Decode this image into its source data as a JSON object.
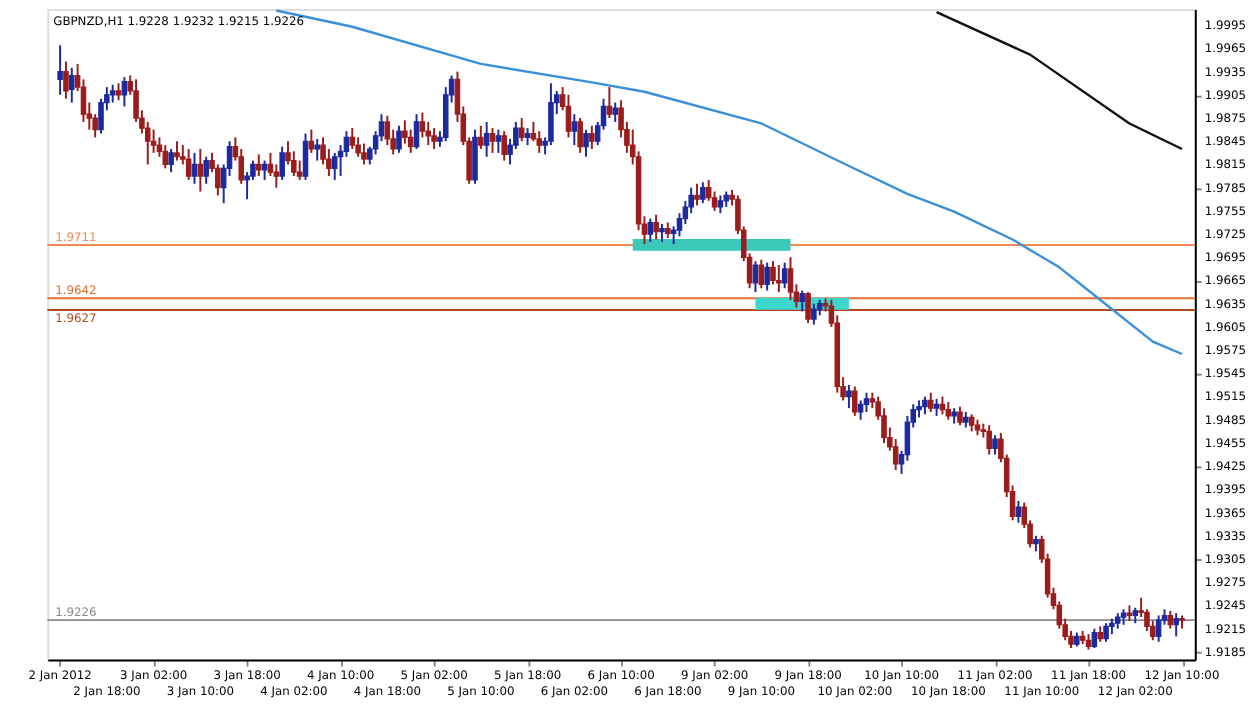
{
  "chart_data": {
    "type": "candlestick",
    "title": "GBPNZD,H1 1.9228 1.9232 1.9215 1.9226",
    "categories": [
      "2 Jan 2012",
      null,
      null,
      null,
      null,
      null,
      null,
      null,
      "2 Jan 18:00",
      null,
      null,
      null,
      null,
      null,
      null,
      null,
      "3 Jan 02:00",
      null,
      null,
      null,
      null,
      null,
      null,
      null,
      "3 Jan 10:00",
      null,
      null,
      null,
      null,
      null,
      null,
      null,
      "3 Jan 18:00",
      null,
      null,
      null,
      null,
      null,
      null,
      null,
      "4 Jan 02:00",
      null,
      null,
      null,
      null,
      null,
      null,
      null,
      "4 Jan 10:00",
      null,
      null,
      null,
      null,
      null,
      null,
      null,
      "4 Jan 18:00",
      null,
      null,
      null,
      null,
      null,
      null,
      null,
      "5 Jan 02:00",
      null,
      null,
      null,
      null,
      null,
      null,
      null,
      "5 Jan 10:00",
      null,
      null,
      null,
      null,
      null,
      null,
      null,
      "5 Jan 18:00",
      null,
      null,
      null,
      null,
      null,
      null,
      null,
      "6 Jan 02:00",
      null,
      null,
      null,
      null,
      null,
      null,
      null,
      "6 Jan 10:00",
      null,
      null,
      null,
      null,
      null,
      null,
      null,
      "6 Jan 18:00",
      null,
      null,
      null,
      null,
      null,
      null,
      null,
      "9 Jan 02:00",
      null,
      null,
      null,
      null,
      null,
      null,
      null,
      "9 Jan 10:00",
      null,
      null,
      null,
      null,
      null,
      null,
      null,
      "9 Jan 18:00",
      null,
      null,
      null,
      null,
      null,
      null,
      null,
      "10 Jan 02:00",
      null,
      null,
      null,
      null,
      null,
      null,
      null,
      "10 Jan 10:00",
      null,
      null,
      null,
      null,
      null,
      null,
      null,
      "10 Jan 18:00",
      null,
      null,
      null,
      null,
      null,
      null,
      null,
      "11 Jan 02:00",
      null,
      null,
      null,
      null,
      null,
      null,
      null,
      "11 Jan 10:00",
      null,
      null,
      null,
      null,
      null,
      null,
      null,
      "11 Jan 18:00",
      null,
      null,
      null,
      null,
      null,
      null,
      null,
      "12 Jan 02:00",
      null,
      null,
      null,
      null,
      null,
      null,
      null,
      "12 Jan 10:00"
    ],
    "ohlc": [
      [
        1.9925,
        1.9969,
        1.9905,
        1.9935
      ],
      [
        1.9935,
        1.9948,
        1.99,
        1.991
      ],
      [
        1.9912,
        1.994,
        1.9895,
        1.993
      ],
      [
        1.993,
        1.9945,
        1.991,
        1.9915
      ],
      [
        1.9915,
        1.9925,
        1.987,
        1.988
      ],
      [
        1.988,
        1.9895,
        1.986,
        1.9875
      ],
      [
        1.9875,
        1.988,
        1.985,
        1.986
      ],
      [
        1.986,
        1.99,
        1.9855,
        1.9895
      ],
      [
        1.9895,
        1.9915,
        1.9885,
        1.9905
      ],
      [
        1.9905,
        1.9918,
        1.9895,
        1.991
      ],
      [
        1.991,
        1.992,
        1.9898,
        1.9905
      ],
      [
        1.9905,
        1.9928,
        1.989,
        1.9922
      ],
      [
        1.9922,
        1.993,
        1.9905,
        1.991
      ],
      [
        1.991,
        1.9925,
        1.987,
        1.9875
      ],
      [
        1.9875,
        1.9885,
        1.9855,
        1.9862
      ],
      [
        1.9862,
        1.987,
        1.9815,
        1.9845
      ],
      [
        1.9845,
        1.986,
        1.983,
        1.984
      ],
      [
        1.984,
        1.985,
        1.9825,
        1.9832
      ],
      [
        1.9832,
        1.984,
        1.981,
        1.9815
      ],
      [
        1.9815,
        1.9835,
        1.9805,
        1.983
      ],
      [
        1.983,
        1.9845,
        1.982,
        1.9825
      ],
      [
        1.9825,
        1.984,
        1.9815,
        1.9822
      ],
      [
        1.9822,
        1.9835,
        1.9795,
        1.98
      ],
      [
        1.98,
        1.983,
        1.979,
        1.9815
      ],
      [
        1.9815,
        1.9835,
        1.978,
        1.98
      ],
      [
        1.98,
        1.9825,
        1.979,
        1.982
      ],
      [
        1.982,
        1.983,
        1.9805,
        1.981
      ],
      [
        1.981,
        1.9815,
        1.9775,
        1.9785
      ],
      [
        1.9785,
        1.9815,
        1.9765,
        1.981
      ],
      [
        1.981,
        1.9845,
        1.98,
        1.9838
      ],
      [
        1.9838,
        1.985,
        1.982,
        1.9825
      ],
      [
        1.9825,
        1.9835,
        1.979,
        1.9795
      ],
      [
        1.9795,
        1.9805,
        1.977,
        1.98
      ],
      [
        1.98,
        1.982,
        1.9795,
        1.9815
      ],
      [
        1.9815,
        1.9828,
        1.98,
        1.9808
      ],
      [
        1.9808,
        1.982,
        1.9795,
        1.9815
      ],
      [
        1.9815,
        1.983,
        1.98,
        1.9805
      ],
      [
        1.9805,
        1.9815,
        1.9785,
        1.98
      ],
      [
        1.98,
        1.9838,
        1.9795,
        1.983
      ],
      [
        1.983,
        1.9845,
        1.9815,
        1.982
      ],
      [
        1.982,
        1.9832,
        1.98,
        1.9805
      ],
      [
        1.9805,
        1.982,
        1.9795,
        1.98
      ],
      [
        1.98,
        1.9855,
        1.9795,
        1.9845
      ],
      [
        1.9845,
        1.986,
        1.983,
        1.9835
      ],
      [
        1.9835,
        1.9848,
        1.982,
        1.984
      ],
      [
        1.984,
        1.985,
        1.9815,
        1.9822
      ],
      [
        1.9822,
        1.9835,
        1.98,
        1.981
      ],
      [
        1.981,
        1.983,
        1.9795,
        1.9825
      ],
      [
        1.9825,
        1.984,
        1.98,
        1.9832
      ],
      [
        1.9832,
        1.9858,
        1.9825,
        1.985
      ],
      [
        1.985,
        1.9862,
        1.9835,
        1.984
      ],
      [
        1.984,
        1.985,
        1.9825,
        1.983
      ],
      [
        1.983,
        1.9842,
        1.9815,
        1.9822
      ],
      [
        1.9822,
        1.9838,
        1.9815,
        1.9835
      ],
      [
        1.9835,
        1.9858,
        1.9828,
        1.9852
      ],
      [
        1.9852,
        1.988,
        1.9845,
        1.987
      ],
      [
        1.987,
        1.9878,
        1.984,
        1.9848
      ],
      [
        1.9848,
        1.986,
        1.9828,
        1.9835
      ],
      [
        1.9835,
        1.9865,
        1.983,
        1.9858
      ],
      [
        1.9858,
        1.9872,
        1.9842,
        1.985
      ],
      [
        1.985,
        1.986,
        1.983,
        1.9838
      ],
      [
        1.9838,
        1.988,
        1.9835,
        1.987
      ],
      [
        1.987,
        1.9882,
        1.985,
        1.9858
      ],
      [
        1.9858,
        1.987,
        1.984,
        1.9852
      ],
      [
        1.9852,
        1.9862,
        1.9835,
        1.9845
      ],
      [
        1.9845,
        1.9858,
        1.9838,
        1.985
      ],
      [
        1.985,
        1.9915,
        1.9845,
        1.9905
      ],
      [
        1.9905,
        1.993,
        1.9895,
        1.9925
      ],
      [
        1.9925,
        1.9935,
        1.987,
        1.988
      ],
      [
        1.988,
        1.989,
        1.984,
        1.9845
      ],
      [
        1.9845,
        1.985,
        1.979,
        1.9795
      ],
      [
        1.9795,
        1.986,
        1.979,
        1.985
      ],
      [
        1.985,
        1.9865,
        1.9835,
        1.984
      ],
      [
        1.984,
        1.987,
        1.9825,
        1.9855
      ],
      [
        1.9855,
        1.9862,
        1.983,
        1.9845
      ],
      [
        1.9845,
        1.986,
        1.983,
        1.9852
      ],
      [
        1.9852,
        1.9858,
        1.982,
        1.9828
      ],
      [
        1.9828,
        1.9848,
        1.9815,
        1.984
      ],
      [
        1.984,
        1.987,
        1.9835,
        1.9862
      ],
      [
        1.9862,
        1.9875,
        1.9845,
        1.985
      ],
      [
        1.985,
        1.9862,
        1.984,
        1.9855
      ],
      [
        1.9855,
        1.987,
        1.9845,
        1.9848
      ],
      [
        1.9848,
        1.9858,
        1.983,
        1.984
      ],
      [
        1.984,
        1.985,
        1.9828,
        1.9845
      ],
      [
        1.9845,
        1.992,
        1.984,
        1.9895
      ],
      [
        1.9895,
        1.991,
        1.988,
        1.9905
      ],
      [
        1.9905,
        1.9915,
        1.9885,
        1.989
      ],
      [
        1.989,
        1.9905,
        1.985,
        1.9858
      ],
      [
        1.9858,
        1.988,
        1.984,
        1.987
      ],
      [
        1.987,
        1.9875,
        1.983,
        1.9838
      ],
      [
        1.9838,
        1.986,
        1.9825,
        1.9855
      ],
      [
        1.9855,
        1.9865,
        1.9835,
        1.9845
      ],
      [
        1.9845,
        1.987,
        1.984,
        1.9865
      ],
      [
        1.9865,
        1.99,
        1.986,
        1.989
      ],
      [
        1.989,
        1.9915,
        1.9875,
        1.988
      ],
      [
        1.988,
        1.9895,
        1.987,
        1.9888
      ],
      [
        1.9888,
        1.9898,
        1.985,
        1.986
      ],
      [
        1.986,
        1.987,
        1.983,
        1.984
      ],
      [
        1.984,
        1.986,
        1.9815,
        1.9825
      ],
      [
        1.9825,
        1.9832,
        1.973,
        1.9738
      ],
      [
        1.9738,
        1.9748,
        1.9712,
        1.9725
      ],
      [
        1.9725,
        1.9745,
        1.9715,
        1.974
      ],
      [
        1.974,
        1.975,
        1.9718,
        1.9728
      ],
      [
        1.9728,
        1.9738,
        1.9715,
        1.9732
      ],
      [
        1.9732,
        1.974,
        1.972,
        1.9726
      ],
      [
        1.9726,
        1.9735,
        1.9712,
        1.973
      ],
      [
        1.973,
        1.9752,
        1.9722,
        1.9745
      ],
      [
        1.9745,
        1.9768,
        1.9738,
        1.976
      ],
      [
        1.976,
        1.9785,
        1.9752,
        1.9775
      ],
      [
        1.9775,
        1.979,
        1.9762,
        1.977
      ],
      [
        1.977,
        1.9792,
        1.9765,
        1.9785
      ],
      [
        1.9785,
        1.9795,
        1.9768,
        1.9772
      ],
      [
        1.9772,
        1.978,
        1.9755,
        1.976
      ],
      [
        1.976,
        1.9775,
        1.9752,
        1.9768
      ],
      [
        1.9768,
        1.978,
        1.976,
        1.9775
      ],
      [
        1.9775,
        1.9782,
        1.9762,
        1.977
      ],
      [
        1.977,
        1.9775,
        1.9725,
        1.973
      ],
      [
        1.973,
        1.9735,
        1.969,
        1.9695
      ],
      [
        1.9695,
        1.97,
        1.9655,
        1.9662
      ],
      [
        1.9662,
        1.969,
        1.965,
        1.9685
      ],
      [
        1.9685,
        1.9692,
        1.9655,
        1.966
      ],
      [
        1.966,
        1.9688,
        1.9652,
        1.9682
      ],
      [
        1.9682,
        1.969,
        1.966,
        1.9665
      ],
      [
        1.9665,
        1.9685,
        1.965,
        1.9662
      ],
      [
        1.9662,
        1.9688,
        1.9655,
        1.968
      ],
      [
        1.968,
        1.9695,
        1.964,
        1.965
      ],
      [
        1.965,
        1.966,
        1.963,
        1.9638
      ],
      [
        1.9638,
        1.9652,
        1.9625,
        1.9648
      ],
      [
        1.9648,
        1.965,
        1.961,
        1.9615
      ],
      [
        1.9615,
        1.9635,
        1.9608,
        1.9628
      ],
      [
        1.9628,
        1.964,
        1.962,
        1.9635
      ],
      [
        1.9635,
        1.9642,
        1.9625,
        1.9632
      ],
      [
        1.9632,
        1.964,
        1.9605,
        1.961
      ],
      [
        1.961,
        1.962,
        1.952,
        1.9528
      ],
      [
        1.9528,
        1.954,
        1.951,
        1.9515
      ],
      [
        1.9515,
        1.953,
        1.95,
        1.9522
      ],
      [
        1.9522,
        1.9528,
        1.949,
        1.9495
      ],
      [
        1.9495,
        1.951,
        1.9485,
        1.9505
      ],
      [
        1.9505,
        1.952,
        1.9495,
        1.9512
      ],
      [
        1.9512,
        1.952,
        1.95,
        1.9508
      ],
      [
        1.9508,
        1.9515,
        1.9485,
        1.949
      ],
      [
        1.949,
        1.95,
        1.9455,
        1.9462
      ],
      [
        1.9462,
        1.9475,
        1.9445,
        1.945
      ],
      [
        1.945,
        1.946,
        1.942,
        1.9428
      ],
      [
        1.9428,
        1.9445,
        1.9415,
        1.944
      ],
      [
        1.944,
        1.949,
        1.9432,
        1.9482
      ],
      [
        1.9482,
        1.9505,
        1.9475,
        1.9498
      ],
      [
        1.9498,
        1.951,
        1.9488,
        1.9502
      ],
      [
        1.9502,
        1.9515,
        1.9492,
        1.951
      ],
      [
        1.951,
        1.952,
        1.9495,
        1.95
      ],
      [
        1.95,
        1.9512,
        1.949,
        1.9505
      ],
      [
        1.9505,
        1.9515,
        1.9492,
        1.9498
      ],
      [
        1.9498,
        1.9508,
        1.9485,
        1.949
      ],
      [
        1.949,
        1.95,
        1.948,
        1.9495
      ],
      [
        1.9495,
        1.9502,
        1.9478,
        1.9482
      ],
      [
        1.9482,
        1.9495,
        1.9475,
        1.9488
      ],
      [
        1.9488,
        1.9492,
        1.947,
        1.9478
      ],
      [
        1.9478,
        1.9485,
        1.9465,
        1.9472
      ],
      [
        1.9472,
        1.948,
        1.9462,
        1.947
      ],
      [
        1.947,
        1.9478,
        1.944,
        1.9448
      ],
      [
        1.9448,
        1.9465,
        1.944,
        1.946
      ],
      [
        1.946,
        1.9468,
        1.943,
        1.9435
      ],
      [
        1.9435,
        1.944,
        1.9385,
        1.9392
      ],
      [
        1.9392,
        1.94,
        1.9355,
        1.936
      ],
      [
        1.936,
        1.938,
        1.9352,
        1.9372
      ],
      [
        1.9372,
        1.9378,
        1.9345,
        1.935
      ],
      [
        1.935,
        1.9355,
        1.932,
        1.9325
      ],
      [
        1.9325,
        1.9335,
        1.9315,
        1.933
      ],
      [
        1.933,
        1.9335,
        1.93,
        1.9305
      ],
      [
        1.9305,
        1.9312,
        1.9255,
        1.926
      ],
      [
        1.926,
        1.9268,
        1.924,
        1.9245
      ],
      [
        1.9245,
        1.925,
        1.9215,
        1.922
      ],
      [
        1.922,
        1.9228,
        1.92,
        1.9205
      ],
      [
        1.9205,
        1.9212,
        1.919,
        1.9195
      ],
      [
        1.9195,
        1.921,
        1.9192,
        1.9205
      ],
      [
        1.9205,
        1.9212,
        1.9195,
        1.92
      ],
      [
        1.92,
        1.9208,
        1.9188,
        1.9192
      ],
      [
        1.9192,
        1.9215,
        1.919,
        1.921
      ],
      [
        1.921,
        1.9218,
        1.9198,
        1.9202
      ],
      [
        1.9202,
        1.9222,
        1.9198,
        1.9218
      ],
      [
        1.9218,
        1.9228,
        1.9208,
        1.9222
      ],
      [
        1.9222,
        1.9235,
        1.9215,
        1.923
      ],
      [
        1.923,
        1.924,
        1.922,
        1.9235
      ],
      [
        1.9235,
        1.9245,
        1.9225,
        1.9232
      ],
      [
        1.9232,
        1.9242,
        1.9222,
        1.9238
      ],
      [
        1.9238,
        1.9255,
        1.923,
        1.9236
      ],
      [
        1.9236,
        1.924,
        1.9212,
        1.9218
      ],
      [
        1.9218,
        1.9225,
        1.92,
        1.9205
      ],
      [
        1.9205,
        1.9232,
        1.9198,
        1.9226
      ],
      [
        1.9226,
        1.924,
        1.922,
        1.9232
      ],
      [
        1.9232,
        1.9238,
        1.9215,
        1.922
      ],
      [
        1.922,
        1.9235,
        1.9205,
        1.9228
      ],
      [
        1.9228,
        1.9232,
        1.9215,
        1.9226
      ]
    ],
    "colors": [
      "#1c2a9e",
      "#9a1c1c",
      "#1c2a9e",
      "#9a1c1c",
      "#9a1c1c",
      "#9a1c1c",
      "#9a1c1c",
      "#1c2a9e",
      "#1c2a9e",
      "#1c2a9e",
      "#9a1c1c",
      "#1c2a9e",
      "#9a1c1c",
      "#9a1c1c",
      "#9a1c1c",
      "#9a1c1c",
      "#9a1c1c",
      "#9a1c1c",
      "#9a1c1c",
      "#1c2a9e",
      "#9a1c1c",
      "#9a1c1c",
      "#9a1c1c",
      "#1c2a9e",
      "#9a1c1c",
      "#1c2a9e",
      "#9a1c1c",
      "#9a1c1c",
      "#1c2a9e",
      "#1c2a9e",
      "#9a1c1c",
      "#9a1c1c",
      "#1c2a9e",
      "#1c2a9e",
      "#9a1c1c",
      "#1c2a9e",
      "#9a1c1c",
      "#9a1c1c",
      "#1c2a9e",
      "#9a1c1c",
      "#9a1c1c",
      "#9a1c1c",
      "#1c2a9e",
      "#9a1c1c",
      "#1c2a9e",
      "#9a1c1c",
      "#9a1c1c",
      "#1c2a9e",
      "#1c2a9e",
      "#1c2a9e",
      "#9a1c1c",
      "#9a1c1c",
      "#9a1c1c",
      "#1c2a9e",
      "#1c2a9e",
      "#1c2a9e",
      "#9a1c1c",
      "#9a1c1c",
      "#1c2a9e",
      "#9a1c1c",
      "#9a1c1c",
      "#1c2a9e",
      "#9a1c1c",
      "#9a1c1c",
      "#9a1c1c",
      "#1c2a9e",
      "#1c2a9e",
      "#1c2a9e",
      "#9a1c1c",
      "#9a1c1c",
      "#9a1c1c",
      "#1c2a9e",
      "#9a1c1c",
      "#1c2a9e",
      "#9a1c1c",
      "#1c2a9e",
      "#9a1c1c",
      "#1c2a9e",
      "#1c2a9e",
      "#9a1c1c",
      "#1c2a9e",
      "#9a1c1c",
      "#9a1c1c",
      "#1c2a9e",
      "#1c2a9e",
      "#1c2a9e",
      "#9a1c1c",
      "#9a1c1c",
      "#1c2a9e",
      "#9a1c1c",
      "#1c2a9e",
      "#9a1c1c",
      "#1c2a9e",
      "#1c2a9e",
      "#9a1c1c",
      "#1c2a9e",
      "#9a1c1c",
      "#9a1c1c",
      "#9a1c1c",
      "#9a1c1c",
      "#9a1c1c",
      "#1c2a9e",
      "#9a1c1c",
      "#1c2a9e",
      "#9a1c1c",
      "#1c2a9e",
      "#1c2a9e",
      "#1c2a9e",
      "#1c2a9e",
      "#9a1c1c",
      "#1c2a9e",
      "#9a1c1c",
      "#9a1c1c",
      "#1c2a9e",
      "#1c2a9e",
      "#9a1c1c",
      "#9a1c1c",
      "#9a1c1c",
      "#9a1c1c",
      "#1c2a9e",
      "#9a1c1c",
      "#1c2a9e",
      "#9a1c1c",
      "#9a1c1c",
      "#1c2a9e",
      "#9a1c1c",
      "#9a1c1c",
      "#1c2a9e",
      "#9a1c1c",
      "#1c2a9e",
      "#1c2a9e",
      "#9a1c1c",
      "#9a1c1c",
      "#9a1c1c",
      "#9a1c1c",
      "#1c2a9e",
      "#9a1c1c",
      "#1c2a9e",
      "#1c2a9e",
      "#9a1c1c",
      "#9a1c1c",
      "#9a1c1c",
      "#9a1c1c",
      "#9a1c1c",
      "#1c2a9e",
      "#1c2a9e",
      "#1c2a9e",
      "#1c2a9e",
      "#1c2a9e",
      "#9a1c1c",
      "#1c2a9e",
      "#9a1c1c",
      "#9a1c1c",
      "#1c2a9e",
      "#9a1c1c",
      "#1c2a9e",
      "#9a1c1c",
      "#9a1c1c",
      "#9a1c1c",
      "#9a1c1c",
      "#1c2a9e",
      "#9a1c1c",
      "#9a1c1c",
      "#9a1c1c",
      "#1c2a9e",
      "#9a1c1c",
      "#9a1c1c",
      "#1c2a9e",
      "#9a1c1c",
      "#9a1c1c",
      "#9a1c1c",
      "#9a1c1c",
      "#9a1c1c",
      "#9a1c1c",
      "#1c2a9e",
      "#9a1c1c",
      "#9a1c1c",
      "#1c2a9e",
      "#9a1c1c",
      "#1c2a9e",
      "#1c2a9e",
      "#1c2a9e",
      "#1c2a9e",
      "#9a1c1c",
      "#1c2a9e",
      "#9a1c1c",
      "#9a1c1c",
      "#9a1c1c",
      "#1c2a9e",
      "#1c2a9e",
      "#9a1c1c",
      "#1c2a9e",
      "#9a1c1c"
    ],
    "series": [
      {
        "type": "line",
        "color": "#3a8fd8",
        "values": [
          null,
          null,
          null,
          null,
          null,
          null,
          null,
          null,
          null,
          null,
          null,
          null,
          null,
          null,
          null,
          null,
          null,
          null,
          null,
          null,
          null,
          null,
          null,
          null,
          null,
          null,
          null,
          null,
          null,
          null,
          null,
          null,
          null,
          null,
          null,
          null,
          null,
          2.0014,
          null,
          null,
          null,
          null,
          null,
          null,
          null,
          null,
          null,
          null,
          null,
          null,
          1.9993,
          null,
          null,
          null,
          null,
          null,
          null,
          null,
          null,
          null,
          null,
          null,
          null,
          null,
          null,
          null,
          null,
          null,
          null,
          null,
          null,
          null,
          1.9945,
          null,
          null,
          null,
          null,
          null,
          null,
          null,
          null,
          null,
          null,
          null,
          null,
          null,
          null,
          null,
          null,
          null,
          null,
          1.9921,
          null,
          null,
          null,
          null,
          null,
          null,
          null,
          null,
          1.9909,
          null,
          null,
          null,
          null,
          null,
          null,
          null,
          null,
          null,
          null,
          null,
          null,
          null,
          null,
          null,
          null,
          null,
          null,
          null,
          1.9868,
          null,
          null,
          null,
          null,
          null,
          null,
          null,
          null,
          null,
          null,
          null,
          null,
          null,
          null,
          1.9813,
          null,
          null,
          null,
          null,
          null,
          null,
          null,
          null,
          null,
          1.9777,
          null,
          null,
          null,
          null,
          null,
          null,
          null,
          1.9754,
          null,
          null,
          null,
          null,
          null,
          null,
          null,
          null,
          null,
          1.9718,
          null,
          null,
          null,
          null,
          null,
          null,
          null,
          1.9682,
          null,
          null,
          null,
          null,
          null,
          null,
          null,
          1.9634,
          null,
          null,
          null,
          null,
          null,
          null,
          null,
          1.9586,
          null,
          null,
          null,
          null,
          1.957
        ]
      },
      {
        "type": "line",
        "color": "#111111",
        "values": [
          null,
          null,
          null,
          null,
          null,
          null,
          null,
          null,
          null,
          null,
          null,
          null,
          null,
          null,
          null,
          null,
          null,
          null,
          null,
          null,
          null,
          null,
          null,
          null,
          null,
          null,
          null,
          null,
          null,
          null,
          null,
          null,
          null,
          null,
          null,
          null,
          null,
          null,
          null,
          null,
          null,
          null,
          null,
          null,
          null,
          null,
          null,
          null,
          null,
          null,
          null,
          null,
          null,
          null,
          null,
          null,
          null,
          null,
          null,
          null,
          null,
          null,
          null,
          null,
          null,
          null,
          null,
          null,
          null,
          null,
          null,
          null,
          null,
          null,
          null,
          null,
          null,
          null,
          null,
          null,
          null,
          null,
          null,
          null,
          null,
          null,
          null,
          null,
          null,
          null,
          null,
          null,
          null,
          null,
          null,
          null,
          null,
          null,
          null,
          null,
          null,
          null,
          null,
          null,
          null,
          null,
          null,
          null,
          null,
          null,
          null,
          null,
          null,
          null,
          null,
          null,
          null,
          null,
          null,
          null,
          null,
          null,
          null,
          null,
          null,
          null,
          null,
          null,
          null,
          null,
          null,
          null,
          null,
          null,
          null,
          null,
          null,
          null,
          null,
          null,
          null,
          null,
          null,
          null,
          null,
          null,
          null,
          null,
          null,
          null,
          2.0012,
          null,
          null,
          null,
          null,
          null,
          null,
          null,
          null,
          null,
          null,
          null,
          null,
          null,
          null,
          null,
          1.9957,
          null,
          null,
          null,
          null,
          null,
          null,
          null,
          null,
          null,
          null,
          null,
          null,
          null,
          null,
          null,
          null,
          1.9868,
          null,
          null,
          null,
          null,
          null,
          null,
          null,
          null,
          1.9835
        ]
      },
      {
        "type": "line",
        "color": "#3cc8b8",
        "values": [
          null,
          null,
          null,
          null,
          null,
          null,
          null,
          null,
          null,
          null,
          null,
          null,
          null,
          null,
          null,
          null,
          null,
          null,
          null,
          null,
          null,
          null,
          null,
          null,
          null,
          null,
          null,
          null,
          null,
          null,
          null,
          null,
          null,
          null,
          null,
          null,
          null,
          null,
          null,
          null,
          null,
          null,
          null,
          null,
          null,
          null,
          null,
          null,
          null,
          null,
          null,
          null,
          null,
          null,
          null,
          null,
          null,
          null,
          null,
          null,
          null,
          null,
          null,
          null,
          null,
          null,
          null,
          null,
          null,
          null,
          null,
          null,
          null,
          null,
          null,
          null,
          null,
          null,
          null,
          null,
          null,
          null,
          null,
          null,
          null,
          null,
          null,
          null,
          null,
          null,
          null,
          null,
          null,
          null,
          null,
          null,
          null,
          null,
          1.9711,
          1.9711,
          1.9711,
          1.9711,
          1.9711,
          1.9711,
          1.9711,
          1.9711,
          1.9711,
          1.9711,
          1.9711,
          1.9711,
          1.9711,
          1.9711,
          1.9711,
          1.9711,
          1.9711,
          1.9711,
          1.9711,
          1.9711,
          1.9711,
          1.9711,
          1.9711,
          1.9711,
          1.9711,
          1.9711,
          1.9711,
          1.9711,
          null,
          null,
          null,
          null,
          null,
          null,
          null,
          null,
          null,
          null,
          null,
          null,
          null,
          null,
          null,
          null,
          null,
          null,
          null,
          null,
          null,
          null,
          null,
          null,
          null,
          null,
          null,
          null,
          null,
          null,
          null,
          null,
          null,
          null,
          null,
          null,
          null,
          null,
          null,
          null,
          null,
          null,
          null,
          null,
          null,
          null,
          null,
          null,
          null,
          null,
          null,
          null,
          null,
          null,
          null,
          null,
          null,
          null,
          null,
          null,
          null,
          null,
          null,
          null,
          null,
          null,
          null
        ]
      },
      {
        "type": "line",
        "color": "#3cd8d0",
        "values": [
          null,
          null,
          null,
          null,
          null,
          null,
          null,
          null,
          null,
          null,
          null,
          null,
          null,
          null,
          null,
          null,
          null,
          null,
          null,
          null,
          null,
          null,
          null,
          null,
          null,
          null,
          null,
          null,
          null,
          null,
          null,
          null,
          null,
          null,
          null,
          null,
          null,
          null,
          null,
          null,
          null,
          null,
          null,
          null,
          null,
          null,
          null,
          null,
          null,
          null,
          null,
          null,
          null,
          null,
          null,
          null,
          null,
          null,
          null,
          null,
          null,
          null,
          null,
          null,
          null,
          null,
          null,
          null,
          null,
          null,
          null,
          null,
          null,
          null,
          null,
          null,
          null,
          null,
          null,
          null,
          null,
          null,
          null,
          null,
          null,
          null,
          null,
          null,
          null,
          null,
          null,
          null,
          null,
          null,
          null,
          null,
          null,
          null,
          null,
          null,
          null,
          null,
          null,
          null,
          null,
          null,
          null,
          null,
          null,
          null,
          null,
          null,
          null,
          null,
          null,
          null,
          null,
          null,
          null,
          1.9635,
          1.9635,
          1.9635,
          1.9635,
          1.9635,
          1.9635,
          1.9635,
          1.9635,
          1.9635,
          1.9635,
          1.9635,
          1.9635,
          1.9635,
          1.9635,
          1.9635,
          1.9635,
          1.9635,
          null,
          null,
          null,
          null,
          null,
          null,
          null,
          null,
          null,
          null,
          null,
          null,
          null,
          null,
          null,
          null,
          null,
          null,
          null,
          null,
          null,
          null,
          null,
          null,
          null,
          null,
          null,
          null,
          null,
          null,
          null,
          null,
          null,
          null,
          null,
          null,
          null,
          null,
          null,
          null,
          null,
          null,
          null,
          null,
          null,
          null,
          null,
          null,
          null,
          null,
          null,
          null,
          null,
          null,
          null,
          null,
          null
        ]
      }
    ],
    "ylim": [
      1.9175,
      2.0016
    ],
    "yticks": [
      1.9185,
      1.9215,
      1.9245,
      1.9275,
      1.9305,
      1.9335,
      1.9365,
      1.9395,
      1.9425,
      1.9455,
      1.9485,
      1.9515,
      1.9545,
      1.9575,
      1.9605,
      1.9635,
      1.9665,
      1.9695,
      1.9725,
      1.9755,
      1.9785,
      1.9815,
      1.9845,
      1.9875,
      1.9905,
      1.9935,
      1.9965,
      1.9995
    ],
    "ref_lines": [
      {
        "axis": "y",
        "value": 1.9711,
        "label": "1.9711",
        "color": "#f08a50"
      },
      {
        "axis": "y",
        "value": 1.9642,
        "label": "1.9642",
        "color": "#e07030"
      },
      {
        "axis": "y",
        "value": 1.9627,
        "label": "1.9627",
        "color": "#b04a20"
      },
      {
        "axis": "y",
        "value": 1.9226,
        "label": "1.9226",
        "color": "#8a8a8a"
      }
    ],
    "grid": false
  }
}
